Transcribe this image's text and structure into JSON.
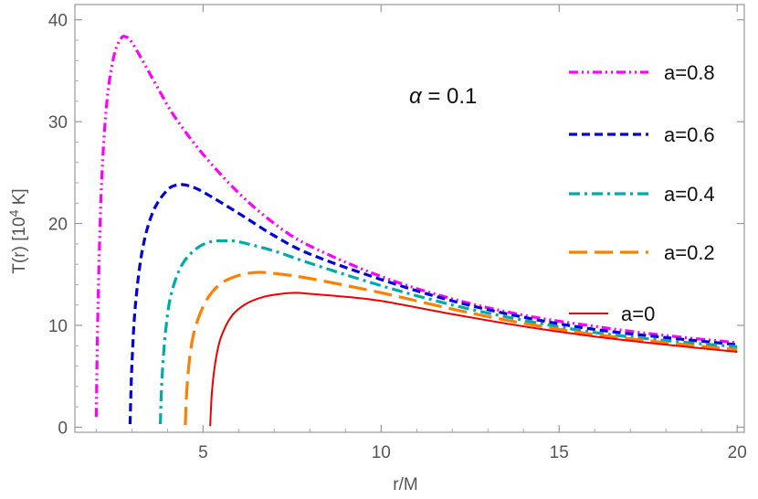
{
  "chart_data": {
    "type": "line",
    "title": "",
    "xlabel": "r/M",
    "ylabel": "T(r) [10^4 K]",
    "ylabel_parts": {
      "pre": "T(r) [10",
      "sup": "4",
      "post": " K]"
    },
    "xlim": [
      1.4,
      20.2
    ],
    "ylim": [
      -0.5,
      41.5
    ],
    "xticks": [
      5,
      10,
      15,
      20
    ],
    "yticks": [
      0,
      10,
      20,
      30,
      40
    ],
    "grid": false,
    "legend_position": "right",
    "annotation": {
      "prefix": "α",
      "text": " = 0.1"
    },
    "series": [
      {
        "name": "a=0.8",
        "color": "#ff00ff",
        "dash": "dashdotdot",
        "x": [
          2.0,
          2.05,
          2.15,
          2.3,
          2.5,
          2.7,
          2.85,
          3.0,
          3.3,
          3.7,
          4.2,
          5,
          6,
          7,
          8,
          10,
          12,
          14,
          16,
          18,
          20
        ],
        "y": [
          1.0,
          12,
          24,
          32,
          36.5,
          38.2,
          38.3,
          37.8,
          36,
          33.5,
          30.5,
          26.8,
          23,
          20,
          17.8,
          14.8,
          12.6,
          11,
          9.9,
          9.0,
          8.3
        ]
      },
      {
        "name": "a=0.6",
        "color": "#0000dd",
        "dash": "dashed",
        "x": [
          2.95,
          3.0,
          3.1,
          3.3,
          3.6,
          4.0,
          4.3,
          4.6,
          5,
          6,
          7,
          8,
          10,
          12,
          14,
          16,
          18,
          20
        ],
        "y": [
          0.3,
          6,
          12,
          17.5,
          21.2,
          23.3,
          23.8,
          23.7,
          23.1,
          21,
          18.8,
          17,
          14.5,
          12.4,
          10.8,
          9.6,
          8.8,
          8.1
        ]
      },
      {
        "name": "a=0.4",
        "color": "#00aaaa",
        "dash": "dashdot",
        "x": [
          3.8,
          3.85,
          3.95,
          4.1,
          4.4,
          4.8,
          5.2,
          5.6,
          6,
          7,
          8,
          10,
          12,
          14,
          16,
          18,
          20
        ],
        "y": [
          0.3,
          5,
          9.5,
          13,
          15.9,
          17.5,
          18.2,
          18.3,
          18.2,
          17.3,
          16.1,
          13.9,
          12.0,
          10.5,
          9.3,
          8.5,
          7.9
        ]
      },
      {
        "name": "a=0.2",
        "color": "#ff7f00",
        "dash": "longdash",
        "x": [
          4.5,
          4.55,
          4.65,
          4.8,
          5.1,
          5.5,
          6,
          6.5,
          7,
          8,
          10,
          12,
          14,
          16,
          18,
          20
        ],
        "y": [
          0.2,
          4,
          7.5,
          10,
          12.5,
          14.1,
          14.9,
          15.2,
          15.1,
          14.6,
          13.2,
          11.6,
          10.2,
          9.1,
          8.3,
          7.6
        ]
      },
      {
        "name": "a=0",
        "color": "#ee0000",
        "dash": "solid",
        "x": [
          5.2,
          5.25,
          5.35,
          5.5,
          5.8,
          6.2,
          6.7,
          7.2,
          7.6,
          8,
          9,
          10,
          12,
          14,
          16,
          18,
          20
        ],
        "y": [
          0.1,
          3.5,
          6.5,
          8.8,
          10.9,
          12.1,
          12.8,
          13.1,
          13.2,
          13.1,
          12.8,
          12.4,
          11.1,
          9.9,
          8.9,
          8.1,
          7.4
        ]
      }
    ]
  }
}
